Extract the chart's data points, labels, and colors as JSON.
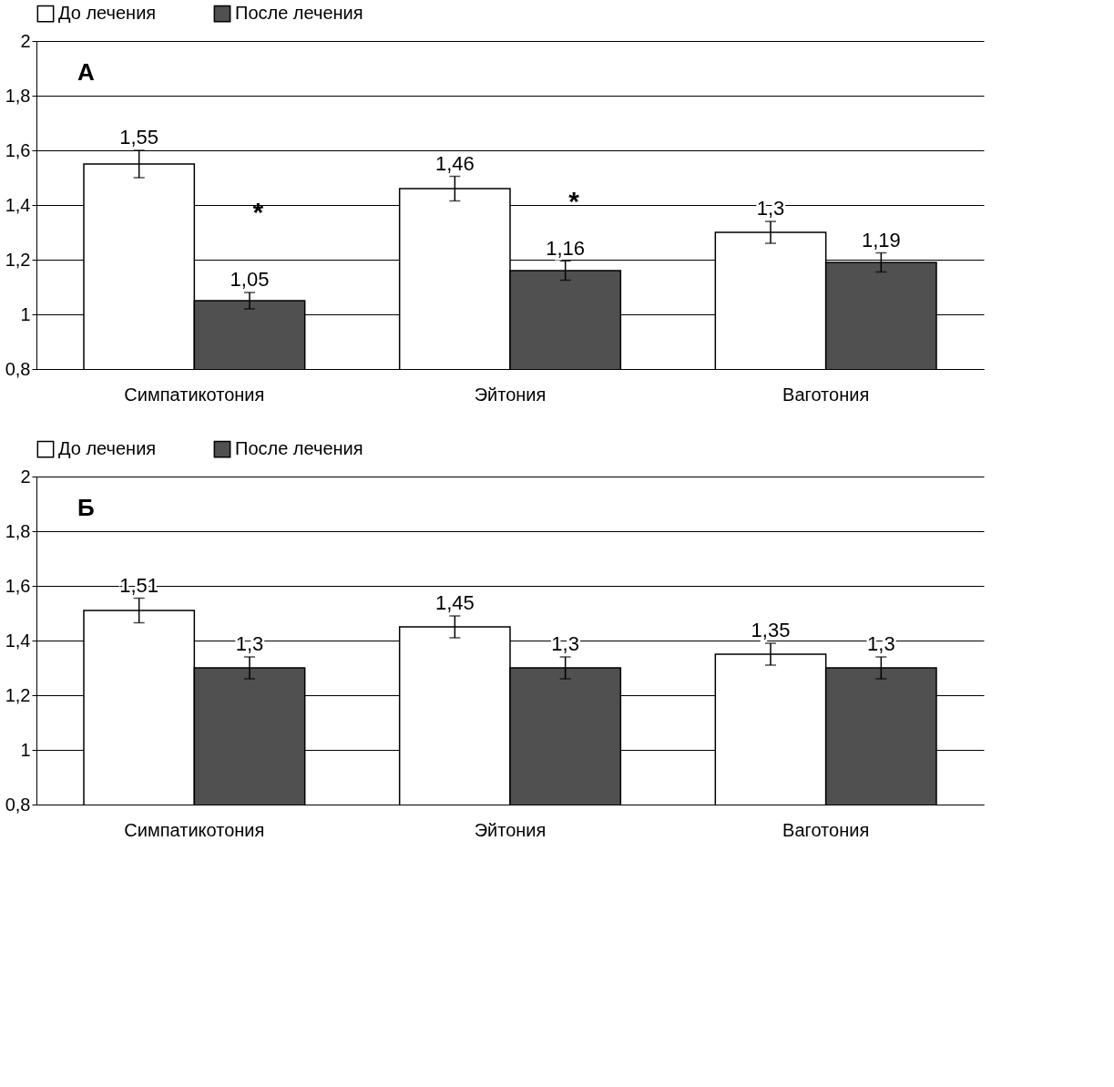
{
  "chart_data": [
    {
      "type": "bar",
      "categories": [
        "Симпатикотония",
        "Эйтония",
        "Ваготония"
      ],
      "ylim": [
        0.8,
        2
      ],
      "yticks": [
        {
          "value": 0.8,
          "label": "0,8"
        },
        1,
        {
          "value": 1.2,
          "label": "1,2"
        },
        {
          "value": 1.4,
          "label": "1,4"
        },
        {
          "value": 1.6,
          "label": "1,6"
        },
        {
          "value": 1.8,
          "label": "1,8"
        },
        2
      ],
      "grid": "y",
      "legend": "top",
      "series": [
        {
          "name": "До лечения",
          "color": "#ffffff",
          "values": [
            1.55,
            1.46,
            1.3
          ],
          "errors": [
            0.05,
            0.045,
            0.04
          ],
          "value_labels": [
            "1,55",
            "1,46",
            "1,3"
          ]
        },
        {
          "name": "После лечения",
          "color": "#505050",
          "values": [
            1.05,
            1.16,
            1.19
          ],
          "errors": [
            0.03,
            0.035,
            0.035
          ],
          "value_labels": [
            "1,05",
            "1,16",
            "1,19"
          ]
        }
      ],
      "annotations": [
        "А",
        {
          "text": "*",
          "x": "Симпатикотония",
          "y": 1.37
        },
        {
          "text": "*",
          "x": "Эйтония",
          "y": 1.41
        }
      ]
    },
    {
      "type": "bar",
      "categories": [
        "Симпатикотония",
        "Эйтония",
        "Ваготония"
      ],
      "ylim": [
        0.8,
        2
      ],
      "yticks": [
        {
          "value": 0.8,
          "label": "0,8"
        },
        1,
        {
          "value": 1.2,
          "label": "1,2"
        },
        {
          "value": 1.4,
          "label": "1,4"
        },
        {
          "value": 1.6,
          "label": "1,6"
        },
        {
          "value": 1.8,
          "label": "1,8"
        },
        2
      ],
      "grid": "y",
      "legend": "top",
      "series": [
        {
          "name": "До лечения",
          "color": "#ffffff",
          "values": [
            1.51,
            1.45,
            1.35
          ],
          "errors": [
            0.045,
            0.04,
            0.04
          ],
          "value_labels": [
            "1,51",
            "1,45",
            "1,35"
          ]
        },
        {
          "name": "После лечения",
          "color": "#505050",
          "values": [
            1.3,
            1.3,
            1.3
          ],
          "errors": [
            0.04,
            0.04,
            0.04
          ],
          "value_labels": [
            "1,3",
            "1,3",
            "1,3"
          ]
        }
      ],
      "annotations": [
        "Б"
      ]
    }
  ]
}
